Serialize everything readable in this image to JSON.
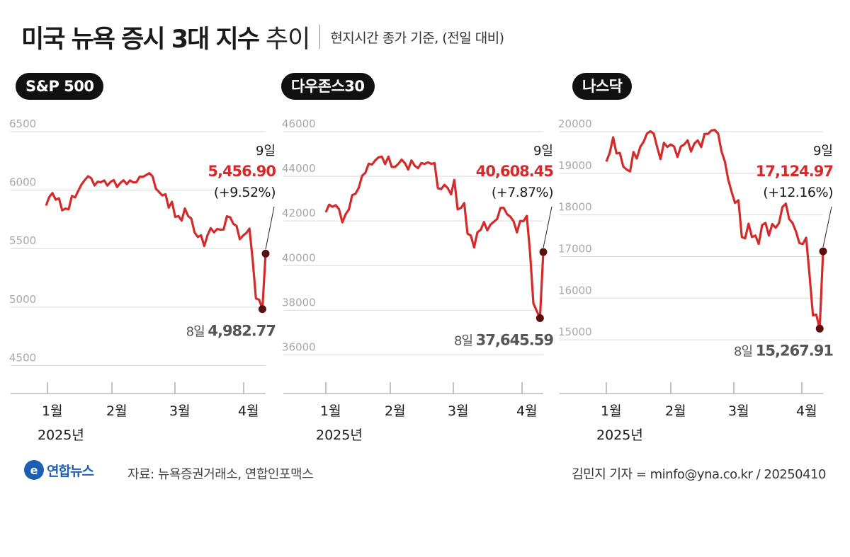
{
  "header": {
    "title_bold": "미국 뉴욕 증시 3대 지수",
    "title_light": "추이",
    "subtitle": "현지시간 종가 기준, (전일 대비)"
  },
  "colors": {
    "line": "#d42a2a",
    "dot": "#5a0f0f",
    "grid": "#d9d9d9",
    "axis": "#9a9a9a",
    "high": "#d42a2a",
    "low": "#555555"
  },
  "footer": {
    "logo_mark": "e",
    "logo": "연합뉴스",
    "source": "자료: 뉴욕증권거래소, 연합인포맥스",
    "credit": "김민지 기자 = minfo@yna.co.kr / 20250410"
  },
  "chart_data": [
    {
      "type": "line",
      "title": "S&P 500",
      "x_ticks": [
        "1월",
        "2월",
        "3월",
        "4월"
      ],
      "x_year": "2025년",
      "ylim": [
        4400,
        6500
      ],
      "yticks": [
        4500,
        5000,
        5500,
        6000,
        6500
      ],
      "series": [
        {
          "values": [
            5868,
            5942,
            5975,
            5918,
            5930,
            5827,
            5842,
            5836,
            5950,
            5937,
            5996,
            6049,
            6086,
            6119,
            6101,
            6040,
            6072,
            6067,
            6083,
            6039,
            6071,
            6086,
            6026,
            6061,
            6084,
            6051,
            6083,
            6066,
            6068,
            6115,
            6114,
            6129,
            6144,
            6118,
            6013,
            5983,
            5955,
            5965,
            5850,
            5900,
            5770,
            5778,
            5739,
            5843,
            5778,
            5756,
            5638,
            5599,
            5614,
            5522,
            5614,
            5675,
            5639,
            5667,
            5662,
            5663,
            5776,
            5768,
            5712,
            5693,
            5580,
            5611,
            5633,
            5671,
            5396,
            5074,
            5062,
            4982.77,
            5456.9
          ]
        }
      ],
      "annotations": {
        "high_day": "9일",
        "high_value": "5,456.90",
        "high_change": "(+9.52%)",
        "low_day": "8일",
        "low_value": "4,982.77"
      }
    },
    {
      "type": "line",
      "title": "다우존스30",
      "x_ticks": [
        "1월",
        "2월",
        "3월",
        "4월"
      ],
      "x_year": "2025년",
      "ylim": [
        35000,
        46000
      ],
      "yticks": [
        36000,
        38000,
        40000,
        42000,
        44000,
        46000
      ],
      "series": [
        {
          "values": [
            42392,
            42732,
            42635,
            42707,
            42528,
            41938,
            42297,
            42518,
            43153,
            43221,
            43487,
            44025,
            44156,
            44565,
            44525,
            44713,
            44850,
            44882,
            44544,
            44882,
            44420,
            44421,
            44556,
            44747,
            44593,
            44303,
            44711,
            44470,
            44368,
            44593,
            44556,
            44627,
            44556,
            44593,
            43461,
            43428,
            43620,
            43470,
            43191,
            43840,
            42520,
            42580,
            42801,
            41433,
            41350,
            40813,
            41488,
            41604,
            41953,
            41581,
            41841,
            41964,
            42092,
            42583,
            42587,
            42299,
            42191,
            41985,
            41488,
            42001,
            41989,
            42225,
            40545,
            38314,
            37966,
            37645.59,
            40608.45
          ]
        }
      ],
      "annotations": {
        "high_day": "9일",
        "high_value": "40,608.45",
        "high_change": "(+7.87%)",
        "low_day": "8일",
        "low_value": "37,645.59"
      }
    },
    {
      "type": "line",
      "title": "나스닥",
      "x_ticks": [
        "1월",
        "2월",
        "3월",
        "4월"
      ],
      "x_year": "2025년",
      "ylim": [
        14100,
        20000
      ],
      "yticks": [
        15000,
        16000,
        17000,
        18000,
        19000,
        20000
      ],
      "series": [
        {
          "values": [
            19280,
            19490,
            19864,
            19478,
            19489,
            19161,
            19088,
            19044,
            19511,
            19354,
            19630,
            19756,
            19954,
            20009,
            19954,
            19632,
            19341,
            19733,
            19632,
            19692,
            19643,
            19392,
            19643,
            19692,
            19791,
            19523,
            19714,
            19791,
            19630,
            19945,
            19945,
            20026,
            20041,
            19956,
            19524,
            19286,
            18847,
            18552,
            18286,
            18350,
            17468,
            17436,
            17790,
            17468,
            17504,
            17303,
            17754,
            17808,
            17504,
            17781,
            17691,
            17804,
            18188,
            18271,
            17899,
            17804,
            17597,
            17323,
            17299,
            17451,
            16550,
            15588,
            15603,
            15267.91,
            17124.97
          ]
        }
      ],
      "annotations": {
        "high_day": "9일",
        "high_value": "17,124.97",
        "high_change": "(+12.16%)",
        "low_day": "8일",
        "low_value": "15,267.91"
      }
    }
  ]
}
